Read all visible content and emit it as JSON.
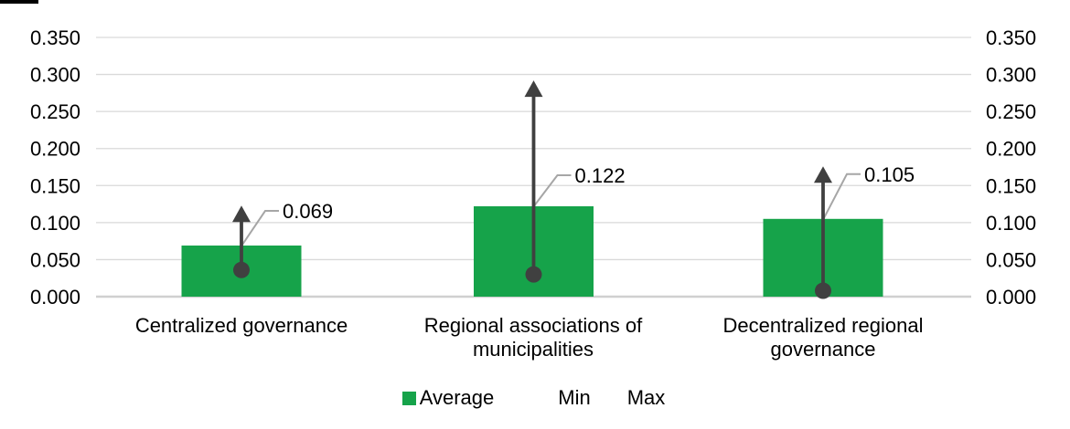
{
  "chart_data": {
    "type": "bar",
    "title": "",
    "categories": [
      "Centralized governance",
      "Regional associations of municipalities",
      "Decentralized regional governance"
    ],
    "series": [
      {
        "name": "Average",
        "role": "bar",
        "color": "#16a34a",
        "values": [
          0.069,
          0.122,
          0.105
        ]
      },
      {
        "name": "Min",
        "role": "dot",
        "color": "#404040",
        "values": [
          0.036,
          0.03,
          0.008
        ]
      },
      {
        "name": "Max",
        "role": "arrow",
        "color": "#404040",
        "values": [
          0.123,
          0.292,
          0.176
        ]
      }
    ],
    "data_labels": {
      "series": "Average",
      "values": [
        "0.069",
        "0.122",
        "0.105"
      ]
    },
    "y_axis": {
      "min": 0,
      "max": 0.35,
      "step": 0.05,
      "ticks": [
        "0.350",
        "0.300",
        "0.250",
        "0.200",
        "0.150",
        "0.100",
        "0.050",
        "0.000"
      ],
      "sides": [
        "left",
        "right"
      ]
    },
    "grid": true,
    "legend": {
      "position": "bottom",
      "items": [
        {
          "label": "Average",
          "swatch": "square",
          "color": "#16a34a"
        },
        {
          "label": "Min",
          "swatch": "hidden"
        },
        {
          "label": "Max",
          "swatch": "hidden"
        }
      ]
    }
  },
  "colors": {
    "bar_green": "#16a34a",
    "marker_dark": "#404040",
    "leader_gray": "#a6a6a6",
    "gridline": "#d9d9d9",
    "axis_line": "#d0d0d0",
    "text": "#000000",
    "background": "#ffffff"
  }
}
